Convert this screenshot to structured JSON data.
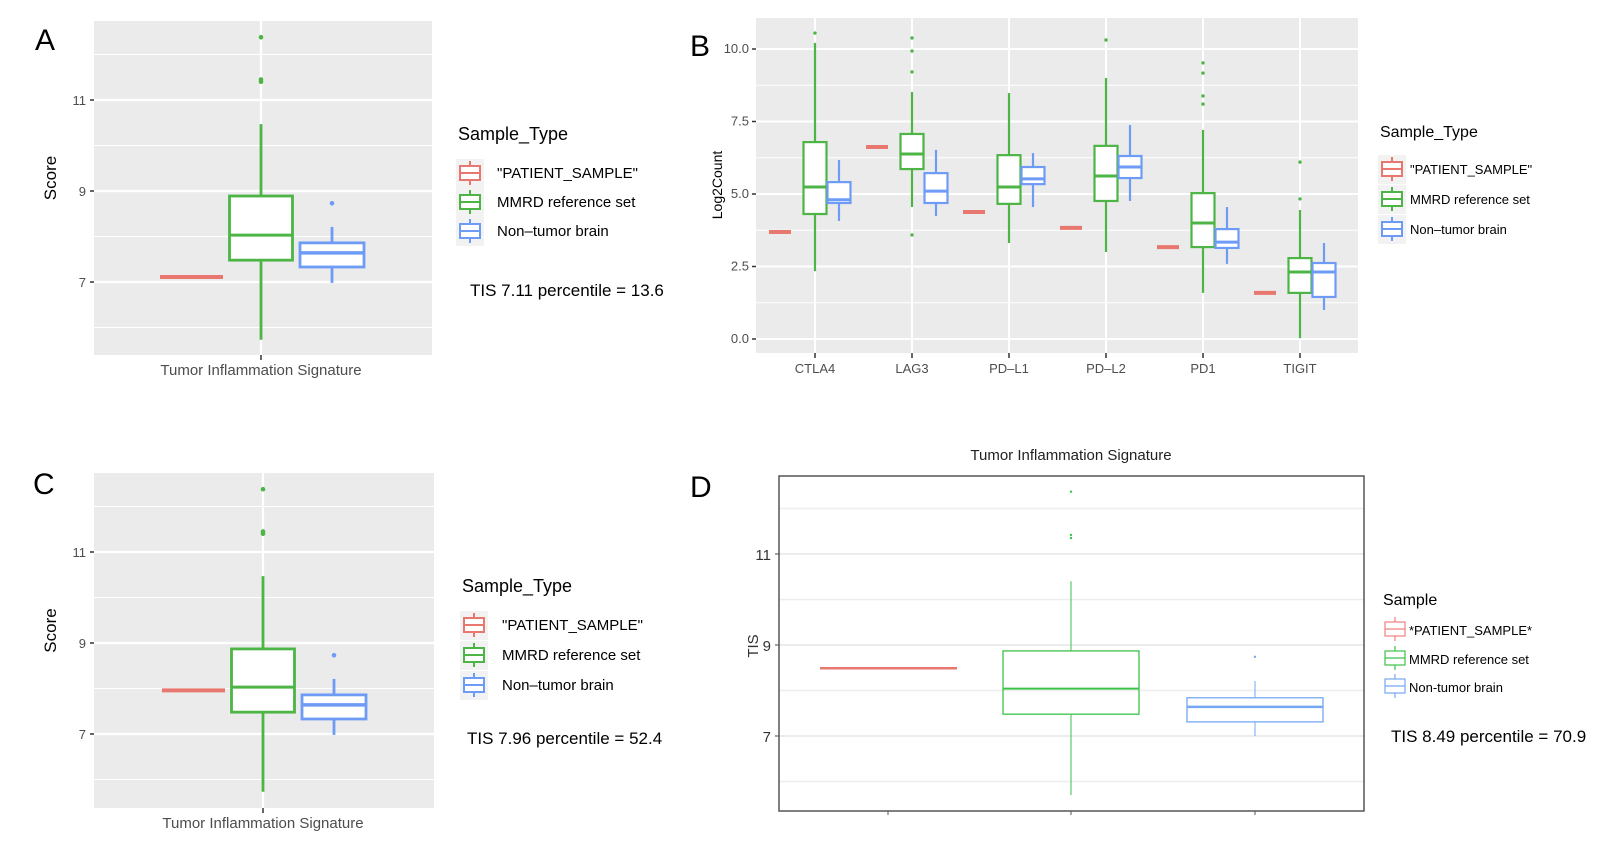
{
  "colors": {
    "patient": "#E8776F",
    "mmrd": "#4DB446",
    "nontumor": "#6E9BF5",
    "panel_bg": "#EBEBEB",
    "grid": "#FFFFFF"
  },
  "chart_data": [
    {
      "panel": "A",
      "type": "box",
      "title": "",
      "xlabel": "",
      "ylabel": "Score",
      "ylim": [
        5.4,
        12.75
      ],
      "yticks": [
        7,
        9,
        11
      ],
      "categories": [
        "Tumor Inflammation Signature"
      ],
      "legend": {
        "title": "Sample_Type",
        "position": "right",
        "entries": [
          "\"PATIENT_SAMPLE\"",
          "MMRD reference set",
          "Non–tumor brain"
        ]
      },
      "annotation": "TIS 7.11 percentile = 13.6",
      "series": [
        {
          "name": "PATIENT_SAMPLE",
          "boxes": [
            {
              "category": "Tumor Inflammation Signature",
              "value": 7.11
            }
          ]
        },
        {
          "name": "MMRD reference set",
          "boxes": [
            {
              "category": "Tumor Inflammation Signature",
              "min": 5.73,
              "q1": 7.48,
              "median": 8.03,
              "q3": 8.89,
              "max": 10.47,
              "outliers": [
                11.4,
                11.45,
                12.38
              ]
            }
          ]
        },
        {
          "name": "Non-tumor brain",
          "boxes": [
            {
              "category": "Tumor Inflammation Signature",
              "min": 6.98,
              "q1": 7.33,
              "median": 7.64,
              "q3": 7.86,
              "max": 8.21,
              "outliers": [
                8.73
              ]
            }
          ]
        }
      ]
    },
    {
      "panel": "B",
      "type": "box",
      "title": "",
      "xlabel": "",
      "ylabel": "Log2Count",
      "ylim": [
        -0.45,
        11.1
      ],
      "yticks": [
        "0.0",
        "2.5",
        "5.0",
        "7.5",
        "10.0"
      ],
      "categories": [
        "CTLA4",
        "LAG3",
        "PD–L1",
        "PD–L2",
        "PD1",
        "TIGIT"
      ],
      "legend": {
        "title": "Sample_Type",
        "position": "right",
        "entries": [
          "\"PATIENT_SAMPLE\"",
          "MMRD reference set",
          "Non–tumor brain"
        ]
      },
      "series": [
        {
          "name": "PATIENT_SAMPLE",
          "values": [
            3.69,
            6.62,
            4.38,
            3.83,
            3.17,
            1.59
          ]
        },
        {
          "name": "MMRD reference set",
          "boxes": [
            {
              "min": 2.34,
              "q1": 4.31,
              "median": 5.24,
              "q3": 6.79,
              "max": 10.21,
              "outliers": [
                10.55
              ]
            },
            {
              "min": 4.55,
              "q1": 5.86,
              "median": 6.38,
              "q3": 7.07,
              "max": 8.52,
              "outliers": [
                3.59,
                9.21,
                9.93,
                10.38
              ]
            },
            {
              "min": 3.31,
              "q1": 4.66,
              "median": 5.24,
              "q3": 6.34,
              "max": 8.48,
              "outliers": []
            },
            {
              "min": 3.0,
              "q1": 4.76,
              "median": 5.62,
              "q3": 6.66,
              "max": 9.0,
              "outliers": [
                10.31
              ]
            },
            {
              "min": 1.59,
              "q1": 3.17,
              "median": 4.0,
              "q3": 5.03,
              "max": 7.21,
              "outliers": [
                8.1,
                8.38,
                9.17,
                9.52
              ]
            },
            {
              "min": 0.03,
              "q1": 1.59,
              "median": 2.31,
              "q3": 2.79,
              "max": 4.45,
              "outliers": [
                4.83,
                6.1
              ]
            }
          ]
        },
        {
          "name": "Non-tumor brain",
          "boxes": [
            {
              "min": 4.07,
              "q1": 4.69,
              "median": 4.8,
              "q3": 5.41,
              "max": 6.17,
              "outliers": []
            },
            {
              "min": 4.24,
              "q1": 4.69,
              "median": 5.1,
              "q3": 5.72,
              "max": 6.52,
              "outliers": []
            },
            {
              "min": 4.55,
              "q1": 5.34,
              "median": 5.52,
              "q3": 5.93,
              "max": 6.41,
              "outliers": []
            },
            {
              "min": 4.76,
              "q1": 5.55,
              "median": 5.93,
              "q3": 6.31,
              "max": 7.38,
              "outliers": []
            },
            {
              "min": 2.59,
              "q1": 3.14,
              "median": 3.34,
              "q3": 3.79,
              "max": 4.55,
              "outliers": []
            },
            {
              "min": 1.0,
              "q1": 1.45,
              "median": 2.31,
              "q3": 2.62,
              "max": 3.31,
              "outliers": []
            }
          ]
        }
      ]
    },
    {
      "panel": "C",
      "type": "box",
      "title": "",
      "xlabel": "",
      "ylabel": "Score",
      "ylim": [
        5.4,
        12.75
      ],
      "yticks": [
        7,
        9,
        11
      ],
      "categories": [
        "Tumor Inflammation Signature"
      ],
      "legend": {
        "title": "Sample_Type",
        "position": "right",
        "entries": [
          "\"PATIENT_SAMPLE\"",
          "MMRD reference set",
          "Non–tumor brain"
        ]
      },
      "annotation": "TIS 7.96 percentile = 52.4",
      "series": [
        {
          "name": "PATIENT_SAMPLE",
          "boxes": [
            {
              "category": "Tumor Inflammation Signature",
              "value": 7.96
            }
          ]
        },
        {
          "name": "MMRD reference set",
          "boxes": [
            {
              "category": "Tumor Inflammation Signature",
              "min": 5.73,
              "q1": 7.48,
              "median": 8.03,
              "q3": 8.87,
              "max": 10.47,
              "outliers": [
                11.4,
                11.45,
                12.38
              ]
            }
          ]
        },
        {
          "name": "Non-tumor brain",
          "boxes": [
            {
              "category": "Tumor Inflammation Signature",
              "min": 6.98,
              "q1": 7.33,
              "median": 7.64,
              "q3": 7.86,
              "max": 8.21,
              "outliers": [
                8.73
              ]
            }
          ]
        }
      ]
    },
    {
      "panel": "D",
      "type": "box",
      "title": "Tumor Inflammation Signature",
      "xlabel": "",
      "ylabel": "TIS",
      "ylim": [
        5.4,
        12.7
      ],
      "yticks": [
        7,
        9,
        11
      ],
      "categories": [
        "*PATIENT_SAMPLE*",
        "MMRD reference set",
        "Non-tumor brain"
      ],
      "legend": {
        "title": "Sample",
        "position": "right",
        "entries": [
          "*PATIENT_SAMPLE*",
          "MMRD reference set",
          "Non-tumor brain"
        ]
      },
      "annotation": "TIS 8.49 percentile = 70.9",
      "series": [
        {
          "name": "*PATIENT_SAMPLE*",
          "value": 8.49
        },
        {
          "name": "MMRD reference set",
          "min": 5.7,
          "q1": 7.48,
          "median": 8.04,
          "q3": 8.87,
          "max": 10.4,
          "outliers": [
            11.35,
            11.42,
            12.37
          ]
        },
        {
          "name": "Non-tumor brain",
          "min": 7.0,
          "q1": 7.31,
          "median": 7.64,
          "q3": 7.84,
          "max": 8.21,
          "outliers": [
            8.74
          ]
        }
      ]
    }
  ],
  "panels": {
    "A": {
      "letter": "A"
    },
    "B": {
      "letter": "B"
    },
    "C": {
      "letter": "C"
    },
    "D": {
      "letter": "D"
    }
  }
}
